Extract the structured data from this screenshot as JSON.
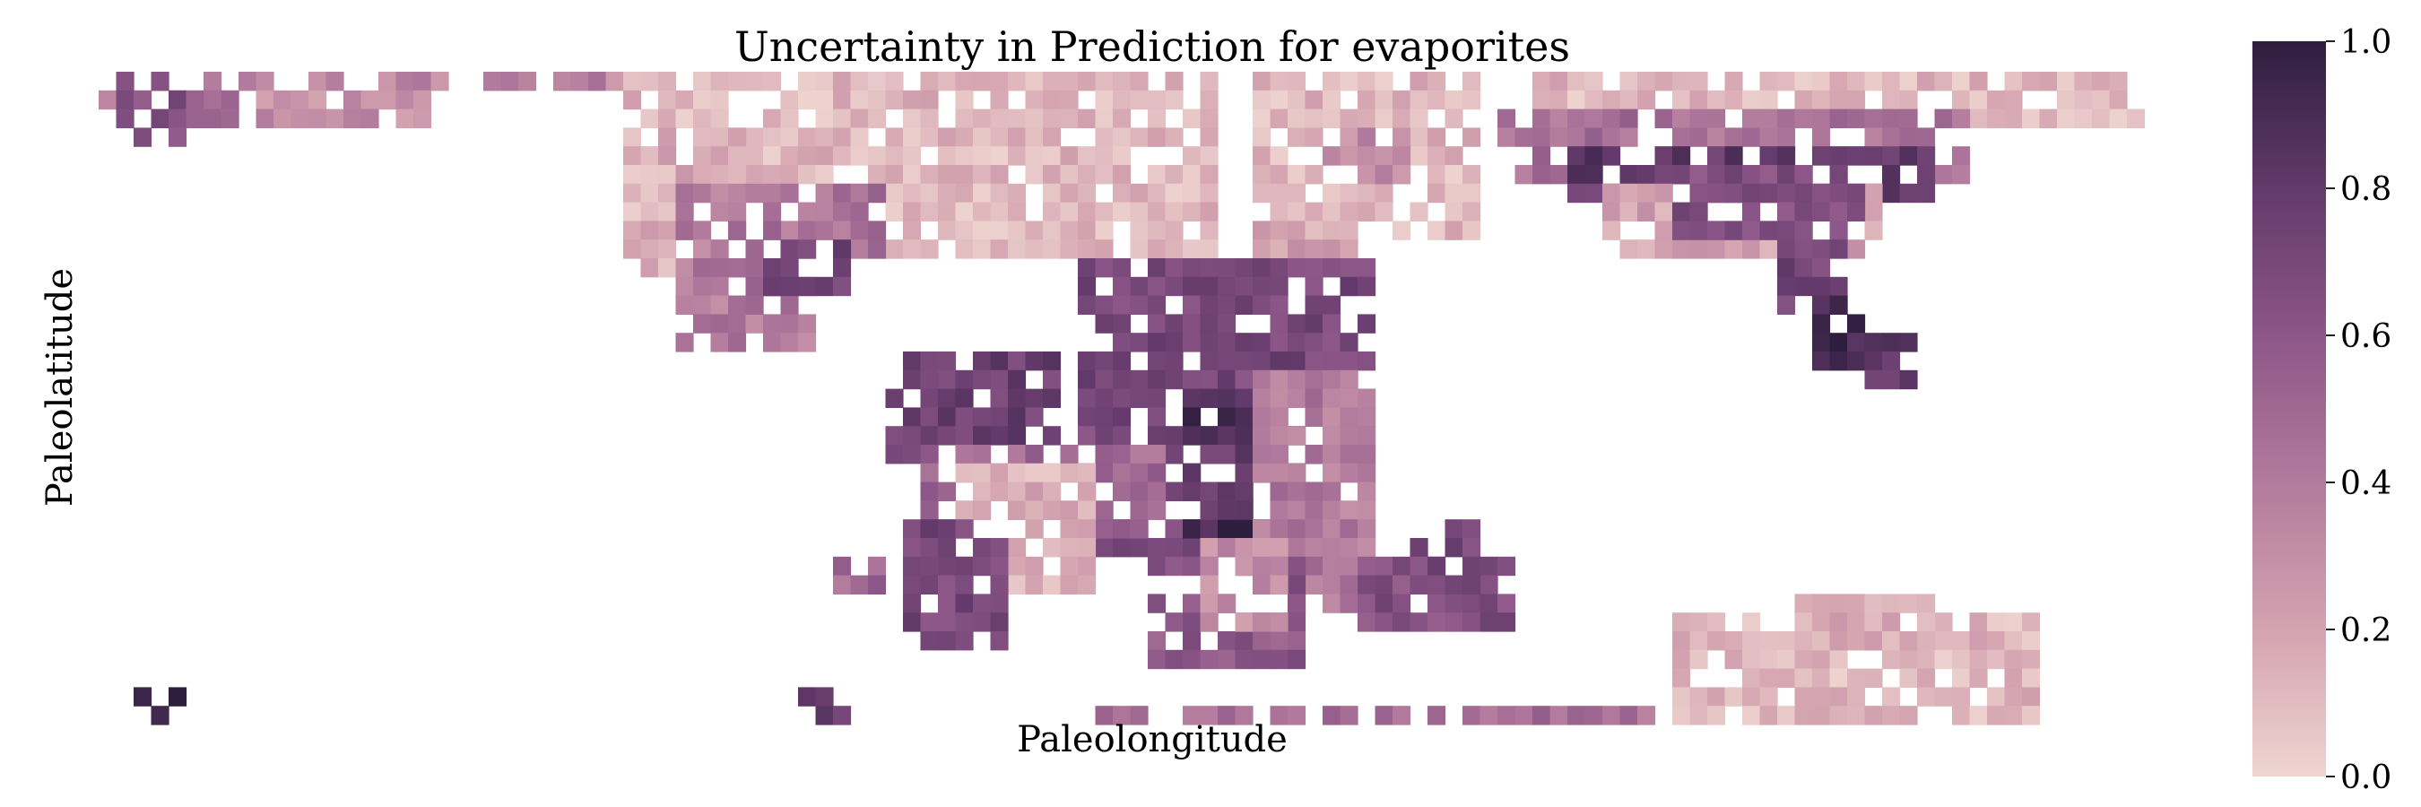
{
  "chart_data": {
    "type": "heatmap",
    "title": "Uncertainty in Prediction for evaporites",
    "xlabel": "Paleolongitude",
    "ylabel": "Paleolatitude",
    "colorbar": {
      "range": [
        0.0,
        1.0
      ],
      "ticks": [
        0.0,
        0.2,
        0.4,
        0.6,
        0.8,
        1.0
      ],
      "tick_labels": [
        "0.0",
        "0.2",
        "0.4",
        "0.6",
        "0.8",
        "1.0"
      ],
      "colors": [
        "#efd5d0",
        "#d4a3b0",
        "#b27a9c",
        "#8c5688",
        "#633a6b",
        "#2e1e3e"
      ]
    },
    "grid": false,
    "no_data_color": "#ffffff",
    "cells_note_grid": [
      120,
      36
    ],
    "regions": [
      {
        "name": "",
        "cells": [
          [
            0,
            0,
            29,
            0,
            0.35
          ],
          [
            0,
            1,
            18,
            2,
            0.3
          ],
          [
            1,
            0,
            4,
            2,
            0.65
          ],
          [
            2,
            3,
            4,
            3,
            0.6
          ],
          [
            5,
            0,
            7,
            2,
            0.5
          ]
        ]
      },
      {
        "name": "",
        "cells": [
          [
            30,
            0,
            63,
            9,
            0.12
          ],
          [
            31,
            3,
            36,
            10,
            0.15
          ],
          [
            33,
            6,
            40,
            14,
            0.4
          ],
          [
            36,
            8,
            38,
            12,
            0.55
          ],
          [
            40,
            6,
            44,
            9,
            0.45
          ],
          [
            38,
            9,
            42,
            11,
            0.7
          ]
        ]
      },
      {
        "name": "",
        "cells": [
          [
            66,
            0,
            78,
            8,
            0.12
          ],
          [
            70,
            3,
            74,
            5,
            0.3
          ],
          [
            66,
            8,
            72,
            11,
            0.2
          ]
        ]
      },
      {
        "name": "",
        "cells": [
          [
            82,
            0,
            116,
            2,
            0.12
          ],
          [
            80,
            2,
            106,
            5,
            0.45
          ],
          [
            84,
            4,
            104,
            6,
            0.8
          ],
          [
            86,
            6,
            101,
            9,
            0.2
          ],
          [
            90,
            5,
            100,
            8,
            0.65
          ],
          [
            96,
            8,
            99,
            12,
            0.7
          ],
          [
            98,
            12,
            100,
            15,
            0.9
          ],
          [
            101,
            14,
            103,
            16,
            0.8
          ]
        ]
      },
      {
        "name": "",
        "cells": [
          [
            56,
            10,
            72,
            25,
            0.7
          ],
          [
            62,
            17,
            68,
            24,
            0.9
          ],
          [
            61,
            20,
            70,
            23,
            0.75
          ],
          [
            66,
            16,
            72,
            28,
            0.4
          ],
          [
            60,
            26,
            68,
            31,
            0.6
          ],
          [
            63,
            25,
            67,
            29,
            0.3
          ]
        ]
      },
      {
        "name": "",
        "cells": [
          [
            45,
            15,
            54,
            20,
            0.75
          ],
          [
            47,
            20,
            60,
            24,
            0.5
          ],
          [
            49,
            21,
            56,
            27,
            0.15
          ],
          [
            46,
            24,
            51,
            30,
            0.7
          ],
          [
            42,
            26,
            44,
            27,
            0.5
          ]
        ]
      },
      {
        "name": "",
        "cells": [
          [
            72,
            26,
            80,
            29,
            0.65
          ],
          [
            75,
            24,
            78,
            27,
            0.7
          ]
        ]
      },
      {
        "name": "",
        "cells": [
          [
            57,
            34,
            88,
            34,
            0.45
          ],
          [
            90,
            29,
            110,
            34,
            0.12
          ],
          [
            97,
            28,
            104,
            30,
            0.15
          ]
        ]
      },
      {
        "name": "",
        "cells": [
          [
            2,
            33,
            4,
            34,
            0.95
          ],
          [
            40,
            33,
            42,
            34,
            0.8
          ]
        ]
      }
    ]
  }
}
